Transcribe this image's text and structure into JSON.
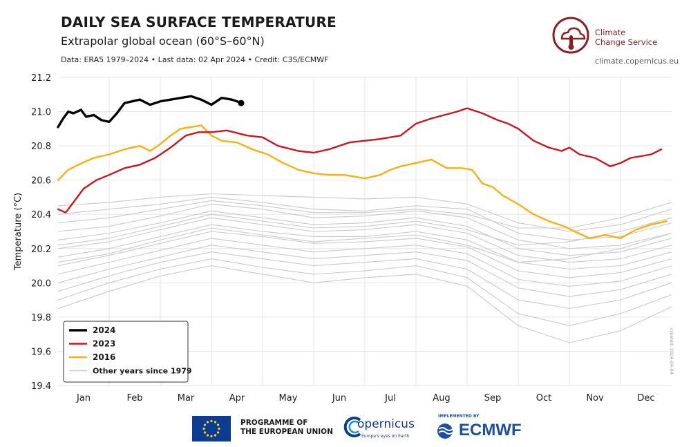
{
  "header": {
    "title": "DAILY SEA SURFACE TEMPERATURE",
    "subtitle": "Extrapolar global ocean (60°S–60°N)",
    "source": "Data: ERA5 1979–2024 • Last data: 02 Apr 2024 • Credit: C3S/ECMWF"
  },
  "brand": {
    "name_line1": "Climate",
    "name_line2": "Change Service",
    "url": "climate.copernicus.eu",
    "accent": "#8e1b1e"
  },
  "footer": {
    "eu_line1": "PROGRAMME OF",
    "eu_line2": "THE EUROPEAN UNION",
    "copernicus_name": "opernicus",
    "copernicus_tag": "Europe's eyes on Earth",
    "ecmwf_implemented": "IMPLEMENTED BY",
    "ecmwf_name": "ECMWF"
  },
  "created_note": "created: 2024-04-04",
  "chart_data": {
    "type": "line",
    "ylabel": "Temperature (°C)",
    "ylim": [
      19.4,
      21.2
    ],
    "yticks": [
      "19.4",
      "19.6",
      "19.8",
      "20.0",
      "20.2",
      "20.4",
      "20.6",
      "20.8",
      "21.0",
      "21.2"
    ],
    "xlim": [
      0,
      12
    ],
    "xticks": [
      "Jan",
      "Feb",
      "Mar",
      "Apr",
      "May",
      "Jun",
      "Jul",
      "Aug",
      "Sep",
      "Oct",
      "Nov",
      "Dec"
    ],
    "grid": true,
    "legend_position": "bottom-left",
    "series": [
      {
        "name": "2024",
        "color": "#000000",
        "x": [
          0.0,
          0.1,
          0.2,
          0.3,
          0.45,
          0.55,
          0.7,
          0.85,
          1.0,
          1.15,
          1.3,
          1.45,
          1.6,
          1.8,
          2.0,
          2.2,
          2.4,
          2.6,
          2.8,
          3.0,
          3.2,
          3.4,
          3.5,
          3.58
        ],
        "y": [
          20.91,
          20.96,
          21.0,
          20.99,
          21.01,
          20.97,
          20.98,
          20.95,
          20.94,
          20.99,
          21.05,
          21.06,
          21.07,
          21.04,
          21.06,
          21.07,
          21.08,
          21.09,
          21.07,
          21.04,
          21.08,
          21.07,
          21.06,
          21.05
        ]
      },
      {
        "name": "2023",
        "color": "#c8161d",
        "x": [
          0.0,
          0.15,
          0.3,
          0.5,
          0.75,
          1.0,
          1.3,
          1.6,
          1.9,
          2.2,
          2.5,
          2.75,
          3.0,
          3.3,
          3.7,
          4.0,
          4.3,
          4.7,
          5.0,
          5.3,
          5.7,
          6.0,
          6.3,
          6.7,
          7.0,
          7.3,
          7.55,
          7.8,
          8.0,
          8.3,
          8.6,
          8.8,
          9.0,
          9.3,
          9.6,
          9.85,
          10.0,
          10.2,
          10.5,
          10.8,
          11.0,
          11.2,
          11.4,
          11.6,
          11.8
        ],
        "y": [
          20.43,
          20.41,
          20.47,
          20.55,
          20.6,
          20.63,
          20.67,
          20.69,
          20.73,
          20.79,
          20.86,
          20.88,
          20.88,
          20.89,
          20.86,
          20.85,
          20.8,
          20.77,
          20.76,
          20.78,
          20.82,
          20.83,
          20.84,
          20.86,
          20.93,
          20.96,
          20.98,
          21.0,
          21.02,
          20.99,
          20.95,
          20.93,
          20.9,
          20.83,
          20.79,
          20.77,
          20.79,
          20.75,
          20.73,
          20.68,
          20.7,
          20.73,
          20.74,
          20.75,
          20.78
        ]
      },
      {
        "name": "2016",
        "color": "#f5b10d",
        "x": [
          0.0,
          0.2,
          0.4,
          0.7,
          1.0,
          1.3,
          1.6,
          1.8,
          2.0,
          2.2,
          2.4,
          2.6,
          2.8,
          3.0,
          3.2,
          3.5,
          3.8,
          4.1,
          4.4,
          4.7,
          5.0,
          5.3,
          5.6,
          6.0,
          6.3,
          6.5,
          6.7,
          7.0,
          7.3,
          7.6,
          7.9,
          8.1,
          8.3,
          8.5,
          8.7,
          9.0,
          9.3,
          9.6,
          9.9,
          10.1,
          10.4,
          10.7,
          11.0,
          11.3,
          11.6,
          11.9
        ],
        "y": [
          20.6,
          20.66,
          20.69,
          20.73,
          20.75,
          20.78,
          20.8,
          20.77,
          20.81,
          20.86,
          20.9,
          20.91,
          20.92,
          20.86,
          20.83,
          20.82,
          20.78,
          20.75,
          20.7,
          20.66,
          20.64,
          20.63,
          20.63,
          20.61,
          20.63,
          20.66,
          20.68,
          20.7,
          20.72,
          20.67,
          20.67,
          20.66,
          20.58,
          20.56,
          20.51,
          20.46,
          20.4,
          20.36,
          20.33,
          20.3,
          20.26,
          20.28,
          20.26,
          20.31,
          20.34,
          20.36
        ]
      },
      {
        "name": "Other years since 1979",
        "color": "#c9c9c9",
        "lines": [
          [
            20.45,
            20.47,
            20.5,
            20.52,
            20.51,
            20.5,
            20.49,
            20.5,
            20.46,
            20.35,
            20.3,
            20.34,
            20.43
          ],
          [
            20.4,
            20.43,
            20.46,
            20.5,
            20.47,
            20.43,
            20.42,
            20.45,
            20.43,
            20.29,
            20.25,
            20.27,
            20.35
          ],
          [
            20.3,
            20.33,
            20.39,
            20.46,
            20.43,
            20.38,
            20.39,
            20.42,
            20.38,
            20.25,
            20.2,
            20.22,
            20.29
          ],
          [
            20.25,
            20.29,
            20.35,
            20.42,
            20.38,
            20.34,
            20.35,
            20.38,
            20.33,
            20.2,
            20.16,
            20.18,
            20.26
          ],
          [
            20.2,
            20.24,
            20.31,
            20.38,
            20.34,
            20.3,
            20.31,
            20.34,
            20.29,
            20.16,
            20.12,
            20.14,
            20.22
          ],
          [
            20.15,
            20.2,
            20.27,
            20.34,
            20.3,
            20.27,
            20.27,
            20.3,
            20.25,
            20.12,
            20.08,
            20.1,
            20.18
          ],
          [
            20.1,
            20.16,
            20.23,
            20.3,
            20.27,
            20.23,
            20.24,
            20.26,
            20.21,
            20.07,
            20.03,
            20.06,
            20.14
          ],
          [
            20.05,
            20.12,
            20.19,
            20.26,
            20.22,
            20.18,
            20.2,
            20.22,
            20.17,
            20.02,
            19.98,
            20.01,
            20.1
          ],
          [
            20.0,
            20.08,
            20.15,
            20.22,
            20.18,
            20.14,
            20.16,
            20.18,
            20.13,
            19.97,
            19.92,
            19.96,
            20.05
          ],
          [
            19.95,
            20.04,
            20.12,
            20.18,
            20.14,
            20.1,
            20.12,
            20.14,
            20.08,
            19.9,
            19.85,
            19.9,
            20.0
          ],
          [
            19.9,
            20.0,
            20.08,
            20.14,
            20.09,
            20.05,
            20.07,
            20.1,
            20.03,
            19.82,
            19.75,
            19.82,
            19.93
          ],
          [
            19.85,
            19.95,
            20.04,
            20.1,
            20.05,
            20.0,
            20.03,
            20.05,
            19.98,
            19.75,
            19.65,
            19.72,
            19.86
          ],
          [
            20.35,
            20.38,
            20.43,
            20.48,
            20.45,
            20.41,
            20.41,
            20.43,
            20.4,
            20.32,
            20.32,
            20.38,
            20.47
          ],
          [
            20.22,
            20.26,
            20.33,
            20.4,
            20.36,
            20.32,
            20.33,
            20.36,
            20.31,
            20.22,
            20.24,
            20.3,
            20.38
          ],
          [
            20.12,
            20.17,
            20.25,
            20.32,
            20.28,
            20.24,
            20.26,
            20.28,
            20.22,
            20.12,
            20.14,
            20.2,
            20.29
          ]
        ]
      }
    ]
  }
}
